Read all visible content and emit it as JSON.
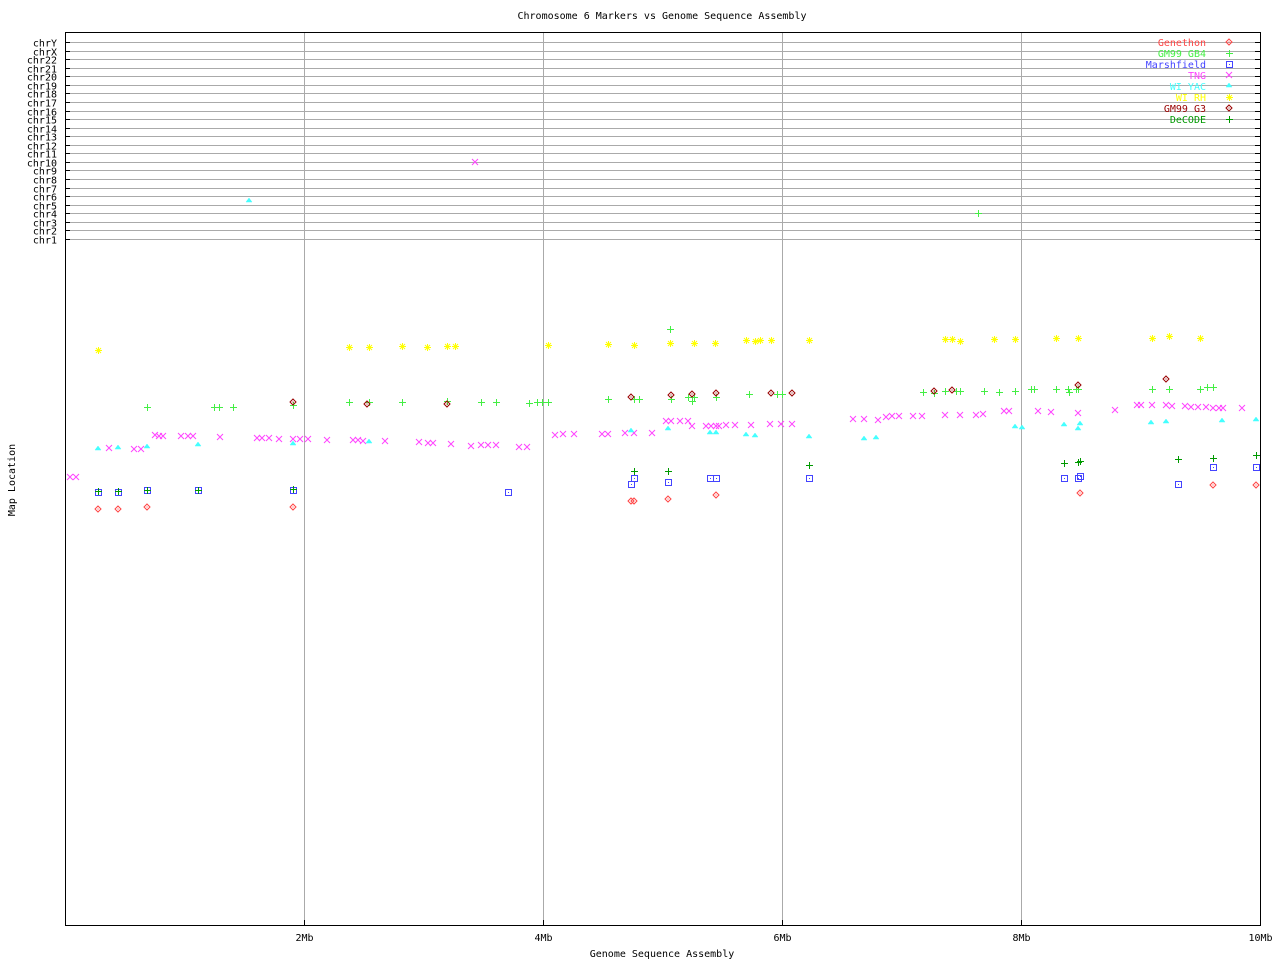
{
  "chart_data": {
    "type": "scatter",
    "title": "Chromosome 6 Markers vs Genome Sequence Assembly",
    "xlabel": "Genome Sequence Assembly",
    "ylabel": "Map Location",
    "xlim": [
      0,
      10
    ],
    "ylim": [
      0,
      100
    ],
    "x_ticks": [
      {
        "value": 2,
        "label": "2Mb"
      },
      {
        "value": 4,
        "label": "4Mb"
      },
      {
        "value": 6,
        "label": "6Mb"
      },
      {
        "value": 8,
        "label": "8Mb"
      },
      {
        "value": 10,
        "label": "10Mb"
      }
    ],
    "grid": true,
    "legend_position": "top-right",
    "chromosome_labels": [
      "chrY",
      "chrX",
      "chr22",
      "chr21",
      "chr20",
      "chr19",
      "chr18",
      "chr17",
      "chr16",
      "chr15",
      "chr14",
      "chr13",
      "chr12",
      "chr11",
      "chr10",
      "chr9",
      "chr8",
      "chr7",
      "chr6",
      "chr5",
      "chr4",
      "chr3",
      "chr2",
      "chr1"
    ],
    "series": [
      {
        "name": "Genethon",
        "color": "#ff4444",
        "marker": "diamond",
        "points": [
          [
            0.28,
            61.2
          ],
          [
            0.44,
            61.2
          ],
          [
            0.69,
            61.5
          ],
          [
            1.91,
            61.5
          ],
          [
            4.74,
            62.4
          ],
          [
            4.76,
            62.4
          ],
          [
            5.05,
            62.6
          ],
          [
            5.45,
            63.2
          ],
          [
            8.49,
            63.5
          ],
          [
            9.61,
            64.7
          ],
          [
            9.97,
            64.7
          ]
        ],
        "chr_points": []
      },
      {
        "name": "GM99 GB4",
        "color": "#44ee44",
        "marker": "plus",
        "points": [
          [
            0.69,
            76.2
          ],
          [
            1.25,
            76.2
          ],
          [
            1.29,
            76.2
          ],
          [
            1.41,
            76.2
          ],
          [
            1.91,
            76.5
          ],
          [
            2.38,
            76.9
          ],
          [
            2.54,
            76.9
          ],
          [
            2.82,
            76.9
          ],
          [
            3.2,
            77.1
          ],
          [
            3.48,
            76.9
          ],
          [
            3.61,
            76.9
          ],
          [
            3.88,
            76.8
          ],
          [
            3.95,
            76.9
          ],
          [
            3.99,
            76.9
          ],
          [
            4.04,
            76.9
          ],
          [
            4.54,
            77.4
          ],
          [
            4.76,
            77.4
          ],
          [
            4.8,
            77.4
          ],
          [
            5.07,
            77.4
          ],
          [
            5.21,
            77.6
          ],
          [
            5.26,
            77.6
          ],
          [
            5.25,
            77.1
          ],
          [
            5.45,
            77.6
          ],
          [
            5.72,
            78.1
          ],
          [
            5.96,
            78.1
          ],
          [
            6.0,
            78.1
          ],
          [
            7.18,
            78.4
          ],
          [
            7.27,
            78.2
          ],
          [
            7.36,
            78.5
          ],
          [
            7.46,
            78.5
          ],
          [
            7.49,
            78.5
          ],
          [
            7.69,
            78.5
          ],
          [
            7.82,
            78.4
          ],
          [
            7.95,
            78.5
          ],
          [
            8.08,
            78.8
          ],
          [
            8.11,
            78.8
          ],
          [
            8.29,
            78.8
          ],
          [
            8.39,
            78.8
          ],
          [
            8.4,
            78.4
          ],
          [
            8.46,
            78.8
          ],
          [
            8.48,
            78.8
          ],
          [
            9.1,
            78.8
          ],
          [
            9.24,
            78.8
          ],
          [
            9.5,
            78.8
          ],
          [
            9.56,
            79.1
          ],
          [
            9.61,
            79.1
          ],
          [
            5.06,
            87.6
          ]
        ],
        "chr_points": [
          [
            7.64,
            "chr4"
          ]
        ]
      },
      {
        "name": "Marshfield",
        "color": "#4444ff",
        "marker": "square",
        "points": [
          [
            0.28,
            63.7
          ],
          [
            0.44,
            63.7
          ],
          [
            0.69,
            64.0
          ],
          [
            1.11,
            64.0
          ],
          [
            1.91,
            64.0
          ],
          [
            3.71,
            63.7
          ],
          [
            4.76,
            65.7
          ],
          [
            4.74,
            64.9
          ],
          [
            5.05,
            65.1
          ],
          [
            5.4,
            65.7
          ],
          [
            5.45,
            65.7
          ],
          [
            6.23,
            65.7
          ],
          [
            8.36,
            65.7
          ],
          [
            8.48,
            65.7
          ],
          [
            8.49,
            66.0
          ],
          [
            9.31,
            64.9
          ],
          [
            9.61,
            67.4
          ],
          [
            9.97,
            67.4
          ]
        ],
        "chr_points": []
      },
      {
        "name": "TNG",
        "color": "#ff44ff",
        "marker": "cross",
        "points": [
          [
            0.04,
            65.9
          ],
          [
            0.09,
            65.9
          ],
          [
            0.37,
            70.1
          ],
          [
            0.58,
            70.0
          ],
          [
            0.64,
            70.0
          ],
          [
            0.75,
            72.1
          ],
          [
            0.79,
            71.9
          ],
          [
            0.82,
            71.9
          ],
          [
            0.97,
            71.9
          ],
          [
            1.03,
            71.9
          ],
          [
            1.07,
            71.9
          ],
          [
            1.3,
            71.8
          ],
          [
            1.61,
            71.6
          ],
          [
            1.65,
            71.6
          ],
          [
            1.71,
            71.6
          ],
          [
            1.79,
            71.5
          ],
          [
            1.91,
            71.5
          ],
          [
            1.97,
            71.5
          ],
          [
            2.03,
            71.5
          ],
          [
            2.19,
            71.3
          ],
          [
            2.41,
            71.3
          ],
          [
            2.45,
            71.3
          ],
          [
            2.49,
            71.2
          ],
          [
            2.68,
            71.2
          ],
          [
            2.96,
            71.0
          ],
          [
            3.04,
            70.9
          ],
          [
            3.08,
            70.9
          ],
          [
            3.23,
            70.7
          ],
          [
            3.4,
            70.4
          ],
          [
            3.48,
            70.6
          ],
          [
            3.54,
            70.6
          ],
          [
            3.61,
            70.6
          ],
          [
            3.8,
            70.3
          ],
          [
            3.87,
            70.3
          ],
          [
            4.1,
            72.1
          ],
          [
            4.17,
            72.2
          ],
          [
            4.26,
            72.2
          ],
          [
            4.49,
            72.2
          ],
          [
            4.54,
            72.2
          ],
          [
            4.69,
            72.4
          ],
          [
            4.76,
            72.4
          ],
          [
            4.91,
            72.4
          ],
          [
            5.03,
            74.1
          ],
          [
            5.07,
            74.1
          ],
          [
            5.15,
            74.1
          ],
          [
            5.21,
            74.1
          ],
          [
            5.25,
            73.4
          ],
          [
            5.36,
            73.4
          ],
          [
            5.41,
            73.4
          ],
          [
            5.45,
            73.4
          ],
          [
            5.47,
            73.4
          ],
          [
            5.53,
            73.5
          ],
          [
            5.61,
            73.5
          ],
          [
            5.74,
            73.5
          ],
          [
            5.9,
            73.7
          ],
          [
            5.99,
            73.7
          ],
          [
            6.08,
            73.7
          ],
          [
            6.59,
            74.4
          ],
          [
            6.69,
            74.4
          ],
          [
            6.8,
            74.3
          ],
          [
            6.87,
            74.7
          ],
          [
            6.92,
            74.9
          ],
          [
            6.98,
            74.9
          ],
          [
            7.1,
            74.9
          ],
          [
            7.17,
            74.9
          ],
          [
            7.36,
            75.0
          ],
          [
            7.49,
            75.0
          ],
          [
            7.62,
            75.0
          ],
          [
            7.68,
            75.1
          ],
          [
            7.86,
            75.6
          ],
          [
            7.9,
            75.6
          ],
          [
            8.14,
            75.6
          ],
          [
            8.25,
            75.4
          ],
          [
            8.48,
            75.3
          ],
          [
            8.79,
            75.7
          ],
          [
            8.97,
            76.5
          ],
          [
            9.0,
            76.5
          ],
          [
            9.1,
            76.5
          ],
          [
            9.21,
            76.5
          ],
          [
            9.26,
            76.3
          ],
          [
            9.37,
            76.3
          ],
          [
            9.42,
            76.2
          ],
          [
            9.48,
            76.2
          ],
          [
            9.55,
            76.2
          ],
          [
            9.61,
            76.0
          ],
          [
            9.66,
            76.0
          ],
          [
            9.69,
            76.0
          ],
          [
            9.85,
            76.0
          ]
        ],
        "chr_points": [
          [
            3.43,
            "chr10"
          ]
        ]
      },
      {
        "name": "WI YAC",
        "color": "#44ffff",
        "marker": "triangle",
        "points": [
          [
            0.28,
            70.0
          ],
          [
            0.44,
            70.1
          ],
          [
            0.69,
            70.3
          ],
          [
            1.11,
            70.6
          ],
          [
            1.91,
            70.7
          ],
          [
            2.54,
            71.0
          ],
          [
            4.74,
            72.6
          ],
          [
            5.05,
            72.9
          ],
          [
            5.4,
            72.4
          ],
          [
            5.45,
            72.4
          ],
          [
            5.7,
            72.1
          ],
          [
            5.77,
            71.9
          ],
          [
            6.23,
            71.8
          ],
          [
            6.69,
            71.5
          ],
          [
            6.79,
            71.6
          ],
          [
            7.95,
            73.2
          ],
          [
            8.01,
            73.1
          ],
          [
            8.36,
            73.5
          ],
          [
            8.49,
            73.7
          ],
          [
            8.48,
            72.9
          ],
          [
            9.09,
            73.8
          ],
          [
            9.21,
            74.0
          ],
          [
            9.68,
            74.1
          ],
          [
            9.97,
            74.3
          ]
        ],
        "chr_points": [
          [
            1.54,
            "chr5"
          ]
        ]
      },
      {
        "name": "WI RH",
        "color": "#ffff00",
        "marker": "star",
        "points": [
          [
            0.28,
            84.6
          ],
          [
            2.38,
            85.0
          ],
          [
            2.54,
            85.0
          ],
          [
            2.82,
            85.1
          ],
          [
            3.03,
            85.0
          ],
          [
            3.2,
            85.1
          ],
          [
            3.26,
            85.1
          ],
          [
            4.04,
            85.3
          ],
          [
            4.54,
            85.4
          ],
          [
            4.76,
            85.3
          ],
          [
            5.06,
            85.6
          ],
          [
            5.26,
            85.6
          ],
          [
            5.44,
            85.6
          ],
          [
            5.7,
            86.0
          ],
          [
            5.77,
            85.9
          ],
          [
            5.82,
            86.0
          ],
          [
            5.91,
            86.0
          ],
          [
            6.23,
            86.0
          ],
          [
            7.36,
            86.2
          ],
          [
            7.42,
            86.2
          ],
          [
            7.49,
            85.9
          ],
          [
            7.77,
            86.2
          ],
          [
            7.95,
            86.2
          ],
          [
            8.29,
            86.3
          ],
          [
            8.48,
            86.3
          ],
          [
            9.1,
            86.3
          ],
          [
            9.24,
            86.6
          ],
          [
            9.5,
            86.3
          ]
        ],
        "chr_points": []
      },
      {
        "name": "GM99 G3",
        "color": "#990000",
        "marker": "diamond",
        "points": [
          [
            1.91,
            76.9
          ],
          [
            2.53,
            76.6
          ],
          [
            3.2,
            76.6
          ],
          [
            4.74,
            77.6
          ],
          [
            5.07,
            77.9
          ],
          [
            5.25,
            78.1
          ],
          [
            5.45,
            78.2
          ],
          [
            5.91,
            78.2
          ],
          [
            6.08,
            78.2
          ],
          [
            7.27,
            78.5
          ],
          [
            7.42,
            78.7
          ],
          [
            8.48,
            79.4
          ],
          [
            9.21,
            80.3
          ]
        ],
        "chr_points": []
      },
      {
        "name": "DeCODE",
        "color": "#009900",
        "marker": "plus",
        "points": [
          [
            0.28,
            63.8
          ],
          [
            0.44,
            63.8
          ],
          [
            0.69,
            64.0
          ],
          [
            1.11,
            64.0
          ],
          [
            1.91,
            64.1
          ],
          [
            4.76,
            66.8
          ],
          [
            5.05,
            66.8
          ],
          [
            6.23,
            67.6
          ],
          [
            8.36,
            67.9
          ],
          [
            8.48,
            68.1
          ],
          [
            8.49,
            68.2
          ],
          [
            9.31,
            68.5
          ],
          [
            9.61,
            68.7
          ],
          [
            9.97,
            69.1
          ]
        ],
        "chr_points": []
      }
    ]
  }
}
